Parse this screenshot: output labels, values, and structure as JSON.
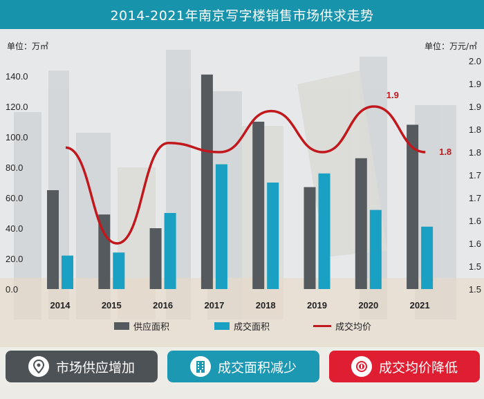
{
  "header": {
    "title": "2014-2021年南京写字楼销售市场供求走势"
  },
  "units": {
    "left": "单位：万㎡",
    "right": "单位：万元/㎡"
  },
  "chart_data": {
    "type": "bar",
    "title": "2014-2021年南京写字楼销售市场供求走势",
    "categories": [
      "2014",
      "2015",
      "2016",
      "2017",
      "2018",
      "2019",
      "2020",
      "2021"
    ],
    "series": [
      {
        "name": "供应面积",
        "type": "bar",
        "axis": "left",
        "color": "#555a5e",
        "values": [
          65,
          49,
          40,
          141,
          110,
          67,
          86,
          108
        ]
      },
      {
        "name": "成交面积",
        "type": "bar",
        "axis": "left",
        "color": "#1aa0c2",
        "values": [
          22,
          24,
          50,
          82,
          70,
          76,
          52,
          41
        ]
      },
      {
        "name": "成交均价",
        "type": "line",
        "axis": "right",
        "color": "#c0181c",
        "values": [
          1.81,
          1.6,
          1.82,
          1.8,
          1.89,
          1.8,
          1.9,
          1.8
        ]
      }
    ],
    "y_left": {
      "ticks": [
        "0.0",
        "20.0",
        "40.0",
        "60.0",
        "80.0",
        "100.0",
        "120.0",
        "140.0"
      ],
      "range": [
        0,
        150
      ]
    },
    "y_right": {
      "ticks": [
        "1.5",
        "1.5",
        "1.6",
        "1.6",
        "1.7",
        "1.7",
        "1.8",
        "1.8",
        "1.9",
        "1.9",
        "2.0"
      ],
      "range": [
        1.5,
        2.0
      ]
    },
    "data_labels": [
      {
        "category": "2020",
        "series": "成交均价",
        "text": "1.9"
      },
      {
        "category": "2021",
        "series": "成交均价",
        "text": "1.8"
      }
    ],
    "legend_position": "bottom",
    "grid": false
  },
  "badges": [
    {
      "label": "市场供应增加",
      "color": "#4d5256",
      "icon": "location-pin-icon"
    },
    {
      "label": "成交面积减少",
      "color": "#1d98b3",
      "icon": "building-icon"
    },
    {
      "label": "成交均价降低",
      "color": "#e01e32",
      "icon": "coin-icon"
    }
  ]
}
